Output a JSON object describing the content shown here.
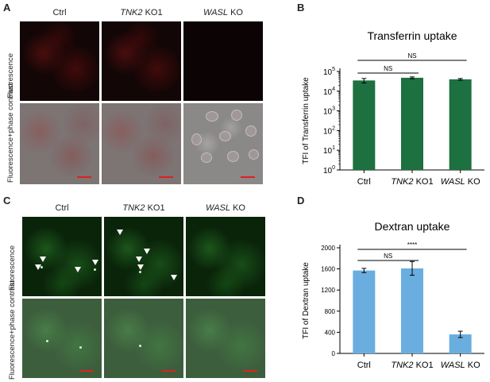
{
  "panels": {
    "A": "A",
    "B": "B",
    "C": "C",
    "D": "D"
  },
  "images": {
    "col1": "Ctrl",
    "col2_gene": "TNK2",
    "col2_suffix": " KO1",
    "col3_gene": "WASL",
    "col3_suffix": " KO",
    "row_fluor": "Fluorescence",
    "row_phase": "Fluorescence+phase contrast"
  },
  "chart_data": [
    {
      "type": "bar",
      "title": "Transferrin uptake",
      "ylabel": "TFI of Transferrin uptake",
      "yscale": "log",
      "ylim": [
        1,
        100000
      ],
      "categories": [
        "Ctrl",
        "TNK2 KO1",
        "WASL KO"
      ],
      "category_labels": [
        {
          "gene": "",
          "suffix": "Ctrl"
        },
        {
          "gene": "TNK2",
          "suffix": " KO1"
        },
        {
          "gene": "WASL",
          "suffix": " KO"
        }
      ],
      "yticks": [
        "10^0",
        "10^1",
        "10^2",
        "10^3",
        "10^4",
        "10^5"
      ],
      "values": [
        35000,
        48000,
        40000
      ],
      "errors": [
        9000,
        5000,
        4000
      ],
      "color": "#1d7040",
      "significance": [
        {
          "from": 0,
          "to": 1,
          "label": "NS"
        },
        {
          "from": 0,
          "to": 2,
          "label": "NS"
        }
      ]
    },
    {
      "type": "bar",
      "title": "Dextran uptake",
      "ylabel": "TFI of Dextran uptake",
      "ylim": [
        0,
        2000
      ],
      "categories": [
        "Ctrl",
        "TNK2 KO1",
        "WASL KO"
      ],
      "category_labels": [
        {
          "gene": "",
          "suffix": "Ctrl"
        },
        {
          "gene": "TNK2",
          "suffix": " KO1"
        },
        {
          "gene": "WASL",
          "suffix": " KO"
        }
      ],
      "yticks": [
        0,
        400,
        800,
        1200,
        1600,
        2000
      ],
      "values": [
        1570,
        1610,
        360
      ],
      "errors": [
        40,
        130,
        60
      ],
      "color": "#6aaee0",
      "significance": [
        {
          "from": 0,
          "to": 1,
          "label": "NS"
        },
        {
          "from": 0,
          "to": 2,
          "label": "****"
        }
      ]
    }
  ]
}
